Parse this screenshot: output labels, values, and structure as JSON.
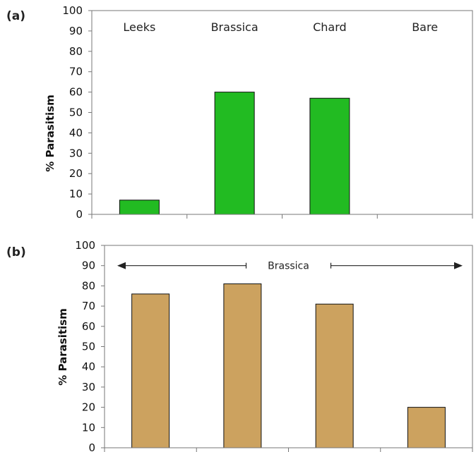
{
  "chart_data": [
    {
      "type": "bar",
      "panel_label": "(a)",
      "categories": [
        "Leeks",
        "Brassica",
        "Chard",
        "Bare"
      ],
      "values": [
        7,
        60,
        57,
        0
      ],
      "xlabel": "",
      "ylabel": "% Parasitism",
      "ylim": [
        0,
        100
      ],
      "yticks": [
        "0",
        "10",
        "20",
        "30",
        "40",
        "50",
        "60",
        "70",
        "80",
        "90",
        "100"
      ],
      "bar_color": "#22bb22",
      "grid": false,
      "legend": "none",
      "categories_position": "top"
    },
    {
      "type": "bar",
      "panel_label": "(b)",
      "categories": [
        "",
        "",
        "",
        ""
      ],
      "values": [
        76,
        81,
        71,
        20
      ],
      "xlabel": "",
      "ylabel": "% Parasitism",
      "ylim": [
        0,
        100
      ],
      "yticks": [
        "0",
        "10",
        "20",
        "30",
        "40",
        "50",
        "60",
        "70",
        "80",
        "90",
        "100"
      ],
      "bar_color": "#cca25f",
      "grid": false,
      "legend": "none",
      "annotation": {
        "text": "Brassica",
        "y": 90,
        "style": "double-arrow"
      }
    }
  ]
}
